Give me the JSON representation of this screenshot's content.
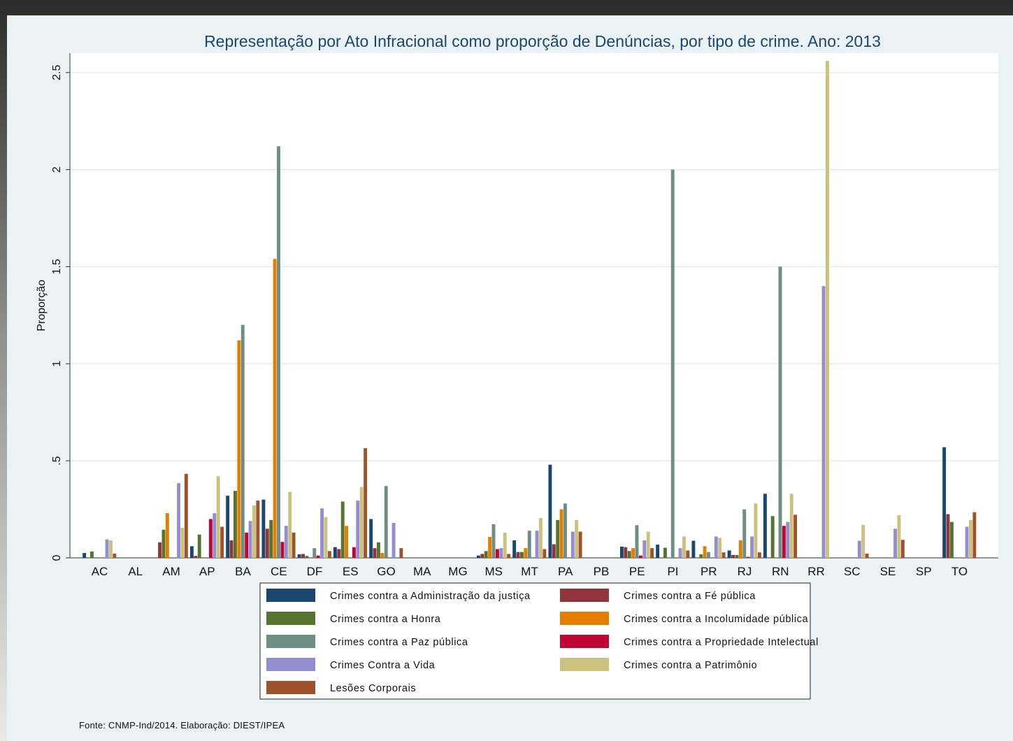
{
  "chart_data": {
    "type": "bar",
    "title": "Representação por Ato Infracional como proporção de Denúncias, por tipo de crime. Ano: 2013",
    "ylabel": "Proporção",
    "xlabel": "",
    "ylim": [
      0,
      2.6
    ],
    "yticks": [
      {
        "value": 0,
        "label": "0"
      },
      {
        "value": 0.5,
        "label": ".5"
      },
      {
        "value": 1,
        "label": "1"
      },
      {
        "value": 1.5,
        "label": "1.5"
      },
      {
        "value": 2,
        "label": "2"
      },
      {
        "value": 2.5,
        "label": "2.5"
      }
    ],
    "grid": true,
    "legend_position": "bottom",
    "categories": [
      "AC",
      "AL",
      "AM",
      "AP",
      "BA",
      "CE",
      "DF",
      "ES",
      "GO",
      "MA",
      "MG",
      "MS",
      "MT",
      "PA",
      "PB",
      "PE",
      "PI",
      "PR",
      "RJ",
      "RN",
      "RR",
      "SC",
      "SE",
      "SP",
      "TO"
    ],
    "series": [
      {
        "name": "Crimes contra a Administração da justiça",
        "color": "#1a476f",
        "values": [
          0.025,
          0,
          0,
          0.06,
          0.32,
          0.3,
          0.018,
          0.055,
          0.2,
          0,
          0,
          0.012,
          0.09,
          0.48,
          0,
          0.058,
          0.068,
          0.088,
          0.038,
          0.33,
          0,
          0,
          0,
          0,
          0.57
        ]
      },
      {
        "name": "Crimes contra a Fé pública",
        "color": "#90353b",
        "values": [
          0,
          0,
          0.08,
          0.01,
          0.09,
          0.15,
          0.02,
          0.045,
          0.05,
          0,
          0,
          0.02,
          0.03,
          0.07,
          0,
          0.055,
          0,
          0,
          0.015,
          0,
          0,
          0,
          0,
          0,
          0.225
        ]
      },
      {
        "name": "Crimes contra a Honra",
        "color": "#55752f",
        "values": [
          0.033,
          0,
          0.145,
          0.12,
          0.345,
          0.195,
          0.01,
          0.29,
          0.08,
          0,
          0,
          0.035,
          0.03,
          0.195,
          0,
          0.035,
          0.052,
          0.018,
          0.015,
          0.215,
          0,
          0,
          0,
          0,
          0.185
        ]
      },
      {
        "name": "Crimes contra a Incolumidade pública",
        "color": "#e37e00",
        "values": [
          0,
          0,
          0.23,
          0,
          1.12,
          1.54,
          0,
          0.165,
          0.025,
          0,
          0,
          0.108,
          0.05,
          0.25,
          0,
          0.05,
          0,
          0.06,
          0.09,
          0,
          0,
          0,
          0,
          0,
          0
        ]
      },
      {
        "name": "Crimes contra a Paz pública",
        "color": "#6e8e84",
        "values": [
          0,
          0,
          0,
          0,
          1.2,
          2.12,
          0.05,
          0,
          0.37,
          0,
          0,
          0.173,
          0.14,
          0.28,
          0,
          0.168,
          2.0,
          0.03,
          0.25,
          1.5,
          0,
          0,
          0,
          0,
          0
        ]
      },
      {
        "name": "Crimes contra a Propriedade Intelectual",
        "color": "#c10534",
        "values": [
          0,
          0,
          0,
          0.2,
          0.13,
          0.082,
          0.012,
          0.055,
          0,
          0,
          0,
          0.045,
          0,
          0,
          0,
          0.012,
          0,
          0,
          0.005,
          0.165,
          0,
          0,
          0,
          0,
          0
        ]
      },
      {
        "name": "Crimes Contra a Vida",
        "color": "#938dd2",
        "values": [
          0.095,
          0,
          0.385,
          0.23,
          0.19,
          0.165,
          0.255,
          0.295,
          0.18,
          0,
          0,
          0.05,
          0.14,
          0.135,
          0,
          0.09,
          0.05,
          0.11,
          0.11,
          0.185,
          1.4,
          0.088,
          0.15,
          0,
          0.16
        ]
      },
      {
        "name": "Crimes contra a Patrimônio",
        "color": "#cac27e",
        "values": [
          0.09,
          0,
          0.155,
          0.42,
          0.27,
          0.34,
          0.21,
          0.365,
          0,
          0,
          0,
          0.13,
          0.205,
          0.195,
          0,
          0.135,
          0.11,
          0.103,
          0.28,
          0.33,
          2.56,
          0.17,
          0.22,
          0,
          0.195
        ]
      },
      {
        "name": "Lesões Corporais",
        "color": "#a0522d",
        "values": [
          0.022,
          0,
          0.433,
          0.16,
          0.295,
          0.13,
          0.035,
          0.565,
          0.05,
          0,
          0,
          0.02,
          0.045,
          0.135,
          0,
          0.05,
          0.038,
          0.028,
          0.028,
          0.222,
          0,
          0.022,
          0.093,
          0,
          0.235
        ]
      }
    ]
  },
  "source_note": "Fonte: CNMP-Ind/2014.  Elaboração: DIEST/IPEA"
}
